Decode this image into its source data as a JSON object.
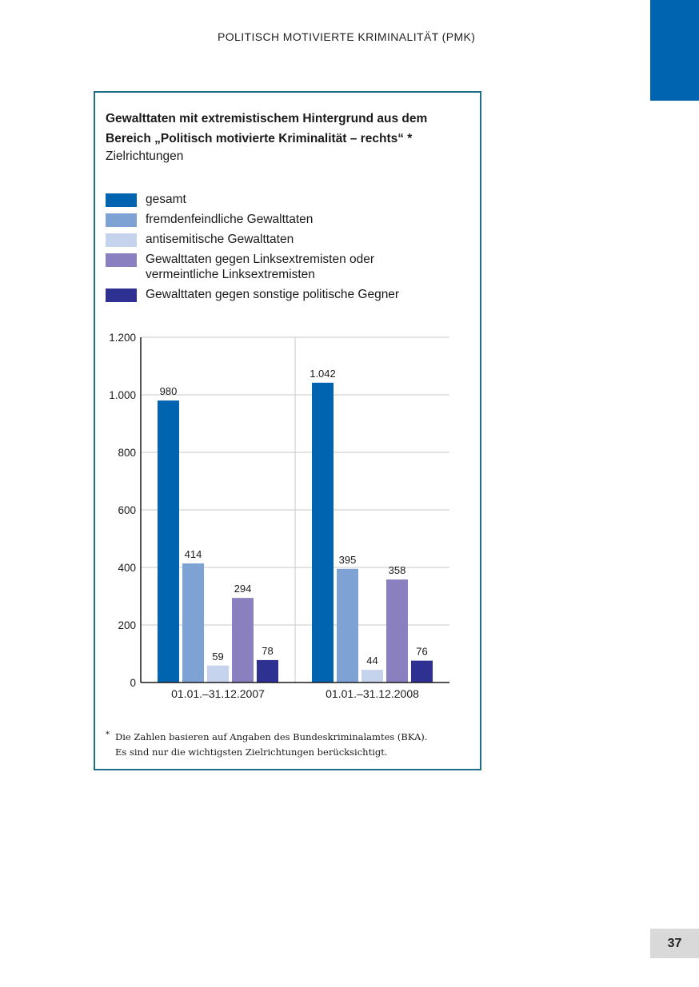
{
  "page": {
    "header": "POLITISCH MOTIVIERTE KRIMINALITÄT (PMK)",
    "page_number": "37",
    "accent_color": "#0064b0"
  },
  "figure": {
    "title": "Gewalttaten mit extremistischem Hintergrund aus dem Bereich „Politisch motivierte Kriminalität – rechts“ *",
    "subtitle": "Zielrichtungen",
    "footnote_marker": "*",
    "footnote_line1": "Die Zahlen basieren auf Angaben des Bundeskriminalamtes (BKA).",
    "footnote_line2": "Es sind nur die wichtigsten Zielrichtungen berücksichtigt.",
    "border_color": "#1f6e88"
  },
  "legend": [
    {
      "label": "gesamt",
      "color": "#0064b0"
    },
    {
      "label": "fremdenfeindliche Gewalttaten",
      "color": "#7fa2d4"
    },
    {
      "label": "antisemitische Gewalttaten",
      "color": "#c6d3ec"
    },
    {
      "label": "Gewalttaten gegen Linksextremisten oder\nvermeintliche Linksextremisten",
      "color": "#8a7fbf"
    },
    {
      "label": "Gewalttaten gegen sonstige politische Gegner",
      "color": "#2e3192"
    }
  ],
  "chart_data": {
    "type": "bar",
    "title": "Gewalttaten mit extremistischem Hintergrund aus dem Bereich „Politisch motivierte Kriminalität – rechts“ *",
    "subtitle": "Zielrichtungen",
    "categories": [
      "01.01.–31.12.2007",
      "01.01.–31.12.2008"
    ],
    "series": [
      {
        "name": "gesamt",
        "color": "#0064b0",
        "values": [
          980,
          1042
        ],
        "labels": [
          "980",
          "1.042"
        ]
      },
      {
        "name": "fremdenfeindliche Gewalttaten",
        "color": "#7fa2d4",
        "values": [
          414,
          395
        ],
        "labels": [
          "414",
          "395"
        ]
      },
      {
        "name": "antisemitische Gewalttaten",
        "color": "#c6d3ec",
        "values": [
          59,
          44
        ],
        "labels": [
          "59",
          "44"
        ]
      },
      {
        "name": "Gewalttaten gegen Linksextremisten oder vermeintliche Linksextremisten",
        "color": "#8a7fbf",
        "values": [
          294,
          358
        ],
        "labels": [
          "294",
          "358"
        ]
      },
      {
        "name": "Gewalttaten gegen sonstige politische Gegner",
        "color": "#2e3192",
        "values": [
          78,
          76
        ],
        "labels": [
          "78",
          "76"
        ]
      }
    ],
    "yticks": [
      0,
      200,
      400,
      600,
      800,
      1000,
      1200
    ],
    "ytick_labels": [
      "0",
      "200",
      "400",
      "600",
      "800",
      "1.000",
      "1.200"
    ],
    "ylim": [
      0,
      1200
    ],
    "xlabel": "",
    "ylabel": "",
    "grid": true,
    "legend_position": "top"
  }
}
